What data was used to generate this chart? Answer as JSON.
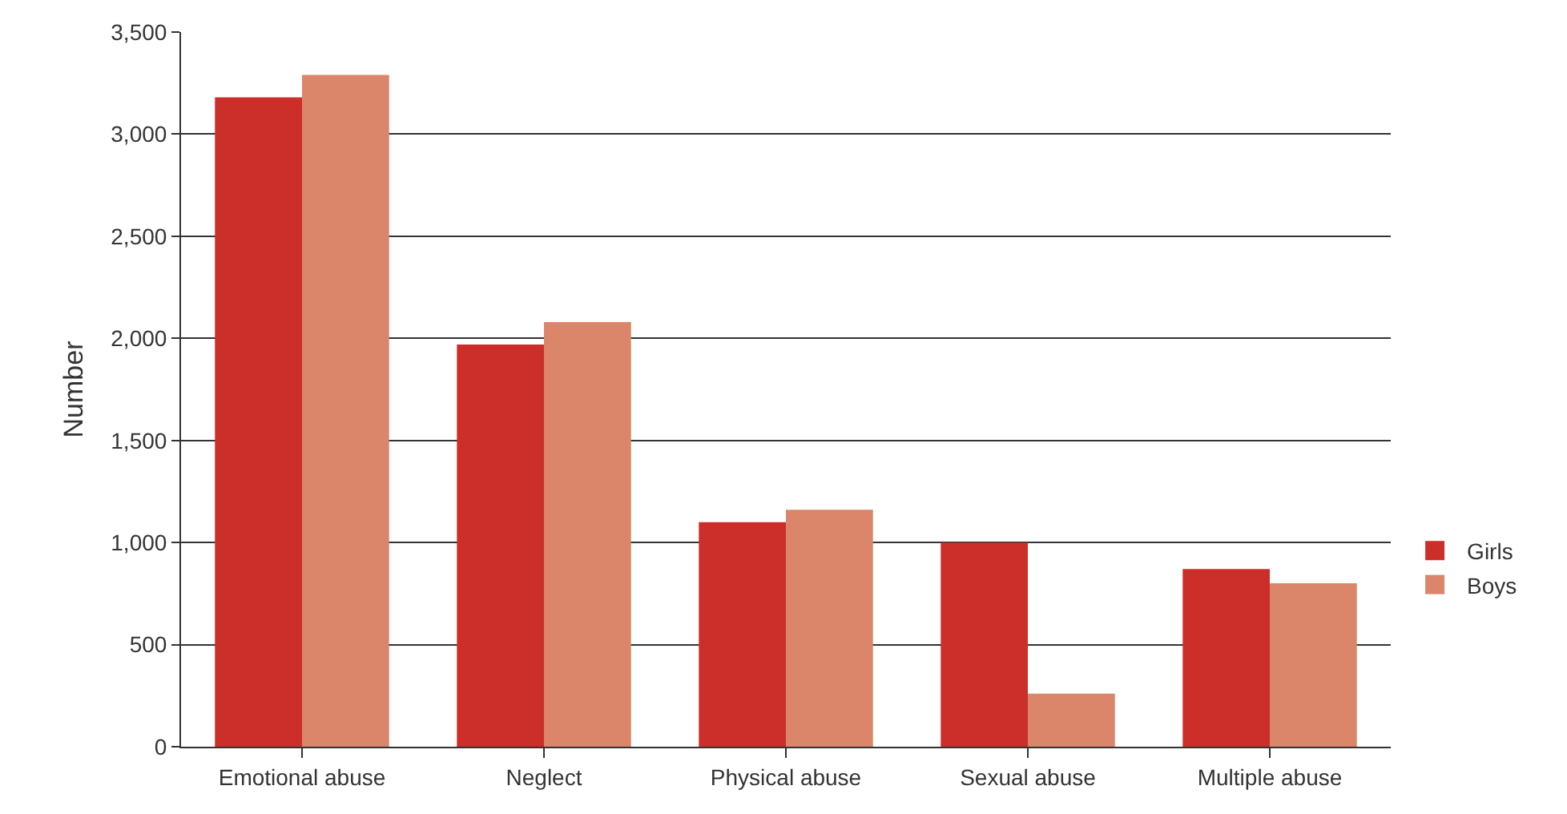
{
  "chart_data": {
    "type": "bar",
    "ylabel": "Number",
    "categories": [
      "Emotional abuse",
      "Neglect",
      "Physical abuse",
      "Sexual abuse",
      "Multiple abuse"
    ],
    "series": [
      {
        "name": "Girls",
        "color": "#cc2f2a",
        "values": [
          3180,
          1970,
          1100,
          1000,
          870
        ]
      },
      {
        "name": "Boys",
        "color": "#db866b",
        "values": [
          3290,
          2080,
          1160,
          260,
          800
        ]
      }
    ],
    "ylim": [
      0,
      3500
    ],
    "yticks": [
      {
        "value": 0,
        "label": "0"
      },
      {
        "value": 500,
        "label": "500"
      },
      {
        "value": 1000,
        "label": "1,000"
      },
      {
        "value": 1500,
        "label": "1,500"
      },
      {
        "value": 2000,
        "label": "2,000"
      },
      {
        "value": 2500,
        "label": "2,500"
      },
      {
        "value": 3000,
        "label": "3,000"
      },
      {
        "value": 3500,
        "label": "3,500"
      }
    ],
    "grid": "y",
    "legend": "right"
  }
}
